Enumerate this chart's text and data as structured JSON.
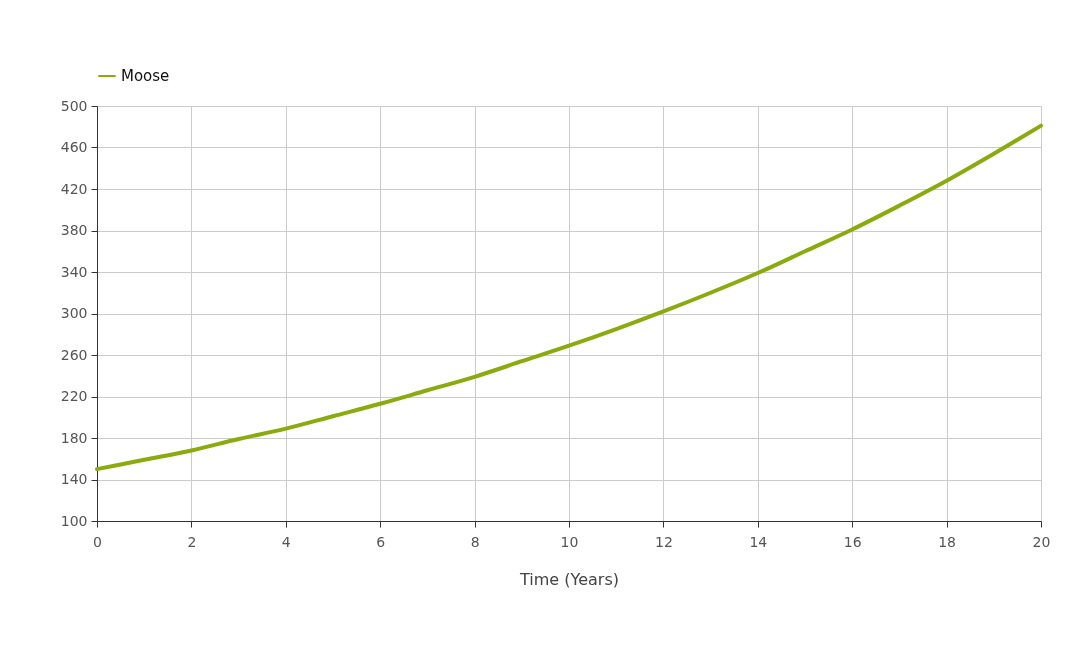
{
  "chart_data": {
    "type": "line",
    "xlabel": "Time (Years)",
    "x": [
      0,
      1,
      2,
      3,
      4,
      5,
      6,
      7,
      8,
      9,
      10,
      11,
      12,
      13,
      14,
      15,
      16,
      17,
      18,
      19,
      20
    ],
    "series": [
      {
        "name": "Moose",
        "color": "#8aab0e",
        "values": [
          150,
          159,
          168,
          179,
          189,
          201,
          213,
          226,
          239,
          254,
          269,
          285,
          302,
          320,
          339,
          360,
          381,
          404,
          428,
          454,
          481
        ]
      }
    ],
    "xlim": [
      0,
      20
    ],
    "xticks": [
      0,
      2,
      4,
      6,
      8,
      10,
      12,
      14,
      16,
      18,
      20
    ],
    "ylim": [
      100,
      500
    ],
    "yticks": [
      100,
      140,
      180,
      220,
      260,
      300,
      340,
      380,
      420,
      460,
      500
    ],
    "grid": true,
    "legend": "top",
    "marker": "none",
    "line_style": "solid"
  }
}
